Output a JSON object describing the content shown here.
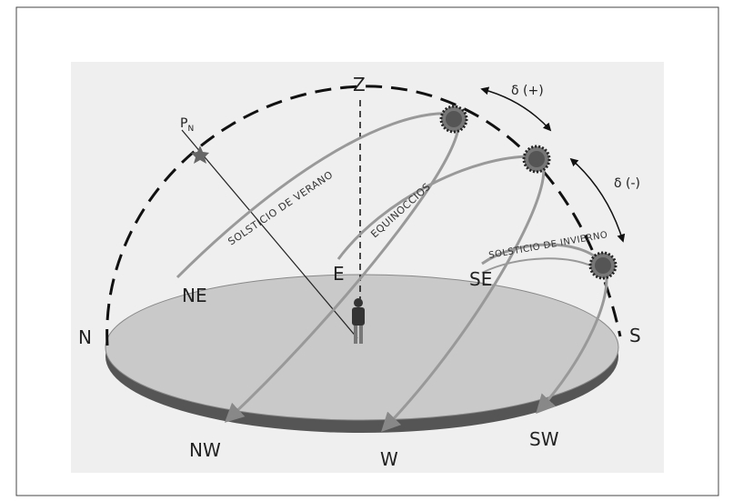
{
  "zenith": "Z",
  "pole": {
    "label": "P",
    "subscript": "N"
  },
  "declination_plus": "δ (+)",
  "declination_minus": "δ (-)",
  "paths": {
    "summer": "SOLSTICIO DE VERANO",
    "equinox": "EQUINOCCIOS",
    "winter": "SOLSTICIO DE INVIERNO"
  },
  "directions": {
    "n": "N",
    "ne": "NE",
    "e": "E",
    "se": "SE",
    "s": "S",
    "sw": "SW",
    "w": "W",
    "nw": "NW"
  }
}
